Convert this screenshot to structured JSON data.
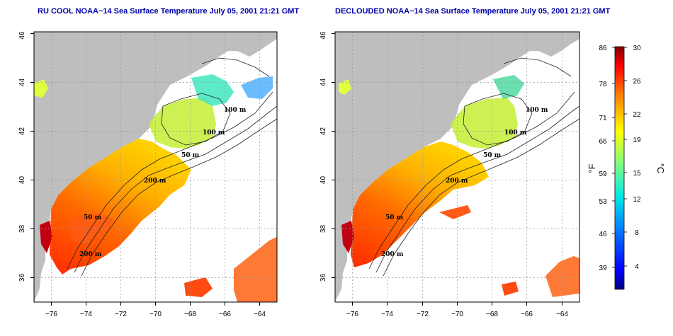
{
  "panels": [
    {
      "title": "RU COOL NOAA−14 Sea Surface Temperature July 05, 2001 21:21 GMT",
      "contour_labels": [
        "100 m",
        "100 m",
        "50 m",
        "200 m",
        "50 m",
        "200 m"
      ]
    },
    {
      "title": "DECLOUDED NOAA−14 Sea Surface Temperature July 05, 2001 21:21 GMT",
      "contour_labels": [
        "100 m",
        "100 m",
        "50 m",
        "200 m",
        "50 m",
        "200 m"
      ]
    }
  ],
  "map": {
    "lon_ticks": [
      "−76",
      "−74",
      "−72",
      "−70",
      "−68",
      "−66",
      "−64"
    ],
    "lat_ticks": [
      "36",
      "38",
      "40",
      "42",
      "44",
      "46"
    ],
    "lon_range": [
      -77,
      -63
    ],
    "lat_range": [
      35,
      46
    ],
    "grid": "dotted",
    "land_color": "#bebebe",
    "no_data_color": "#ffffff"
  },
  "colorbar": {
    "fahrenheit_ticks": [
      "86",
      "78",
      "71",
      "66",
      "59",
      "53",
      "46",
      "39"
    ],
    "celsius_ticks": [
      "30",
      "26",
      "22",
      "19",
      "15",
      "12",
      "8",
      "4"
    ],
    "fahrenheit_unit": "°F",
    "celsius_unit": "°C",
    "range_c": [
      1,
      30
    ],
    "colors": [
      "#000080",
      "#0000ff",
      "#0080ff",
      "#00ffff",
      "#80ff80",
      "#ffff00",
      "#ff8000",
      "#ff0000",
      "#800000"
    ]
  }
}
